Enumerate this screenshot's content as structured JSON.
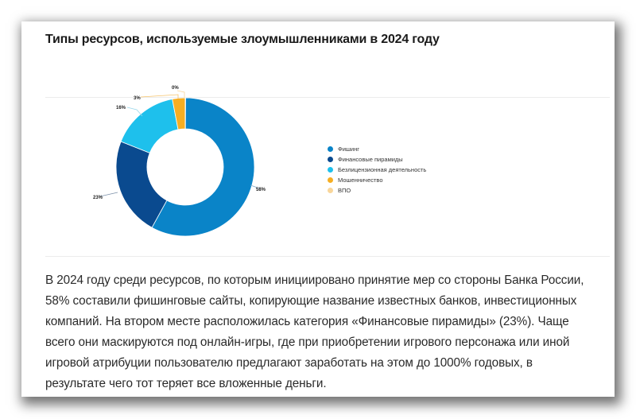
{
  "card": {
    "title": "Типы ресурсов, используемые злоумышленниками в 2024 году",
    "body_text": "В 2024 году среди ресурсов, по которым инициировано принятие мер со стороны Банка России, 58% составили фишинговые сайты, копирующие название известных банков, инвестиционных компаний. На втором месте расположилась категория «Финансовые пирамиды» (23%). Чаще всего они маскируются под онлайн-игры, где при приобретении игрового персонажа или иной игровой атрибуции пользователю предлагают заработать на этом до 1000% годовых, в результате чего тот теряет все вложенные деньги."
  },
  "legend": [
    {
      "label": "Фишинг",
      "color": "#0a84c8"
    },
    {
      "label": "Финансовые пирамиды",
      "color": "#0a4a8f"
    },
    {
      "label": "Безлицензионная деятельность",
      "color": "#1ec0ec"
    },
    {
      "label": "Мошенничество",
      "color": "#f6ae22"
    },
    {
      "label": "ВПО",
      "color": "#f9d69a"
    }
  ],
  "labels": {
    "phishing": "58%",
    "pyramids": "23%",
    "unlicensed": "16%",
    "fraud": "3%",
    "malware": "0%"
  },
  "chart_data": {
    "type": "pie",
    "variant": "donut",
    "title": "Типы ресурсов, используемые злоумышленниками в 2024 году",
    "categories": [
      "Фишинг",
      "Финансовые пирамиды",
      "Безлицензионная деятельность",
      "Мошенничество",
      "ВПО"
    ],
    "values": [
      58,
      23,
      16,
      3,
      0
    ],
    "unit": "%",
    "colors": [
      "#0a84c8",
      "#0a4a8f",
      "#1ec0ec",
      "#f6ae22",
      "#f9d69a"
    ],
    "legend_position": "right",
    "start_angle": "12 o'clock, clockwise"
  }
}
